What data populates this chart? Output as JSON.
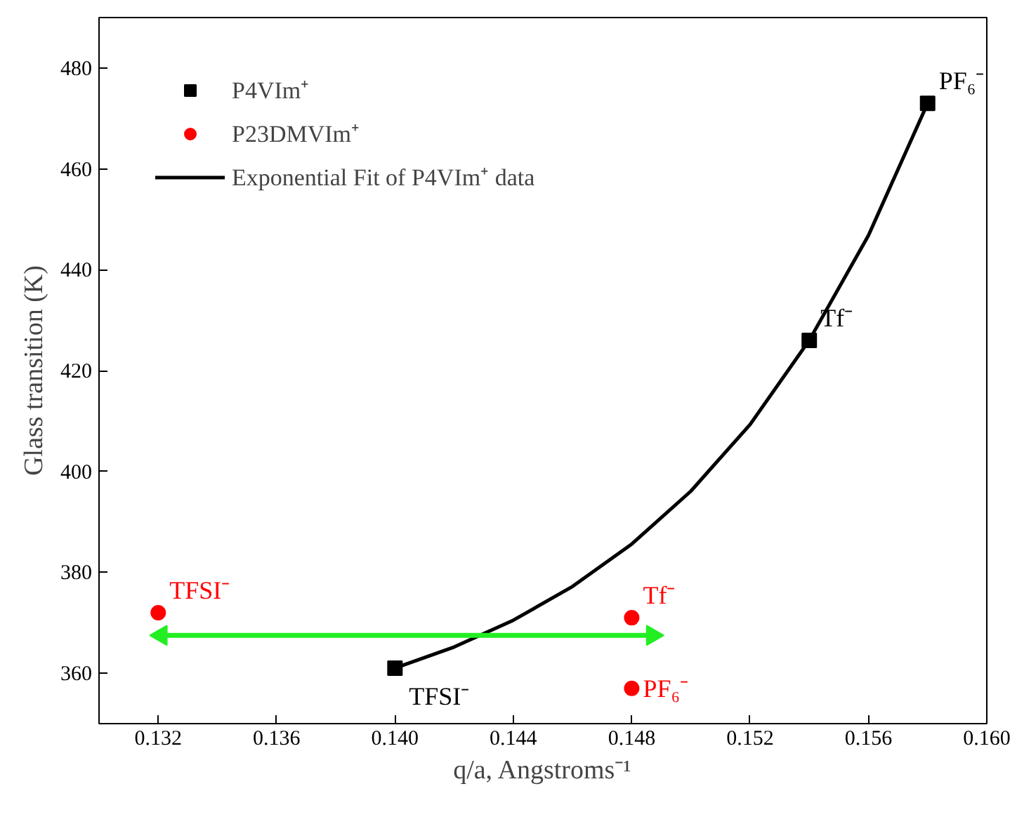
{
  "chart_data": {
    "type": "scatter",
    "xlabel": "q/a, Angstroms⁻¹",
    "ylabel": "Glass transition (K)",
    "xlim": [
      0.13,
      0.16
    ],
    "ylim": [
      350,
      490
    ],
    "xticks": [
      {
        "value": 0.132,
        "label": "0.132"
      },
      {
        "value": 0.136,
        "label": "0.136"
      },
      {
        "value": 0.14,
        "label": "0.140"
      },
      {
        "value": 0.144,
        "label": "0.144"
      },
      {
        "value": 0.148,
        "label": "0.148"
      },
      {
        "value": 0.152,
        "label": "0.152"
      },
      {
        "value": 0.156,
        "label": "0.156"
      },
      {
        "value": 0.16,
        "label": "0.160"
      }
    ],
    "yticks": [
      360,
      380,
      400,
      420,
      440,
      460,
      480
    ],
    "grid": false,
    "legend": "top left",
    "series": [
      {
        "name": "P4VIm⁺",
        "marker": "square",
        "color": "#000000",
        "x": [
          0.14,
          0.154,
          0.158
        ],
        "values": [
          361,
          426,
          473
        ]
      },
      {
        "name": "P23DMVIm⁺",
        "marker": "circle",
        "color": "#ff0000",
        "x": [
          0.132,
          0.148,
          0.148
        ],
        "values": [
          372,
          371,
          357
        ]
      },
      {
        "name": "Exponential Fit of P4VIm⁺ data",
        "type": "line",
        "marker": "none",
        "line_style": "solid",
        "color": "#000000",
        "x": [
          0.14,
          0.142,
          0.144,
          0.146,
          0.148,
          0.15,
          0.152,
          0.154,
          0.156,
          0.158
        ],
        "values": [
          361,
          365.2,
          370.5,
          377.2,
          385.6,
          396.1,
          409.3,
          426,
          446.8,
          473
        ]
      },
      {
        "type": "line",
        "marker": "triangle",
        "line_style": "solid",
        "color": "#22ee22",
        "x": [
          0.1321,
          0.1487
        ],
        "values": [
          367.5,
          367.5
        ]
      }
    ],
    "annotations": [
      {
        "text": "PF₆⁻",
        "x": 0.158,
        "y": 473
      },
      {
        "text": "Tf⁻",
        "x": 0.154,
        "y": 426
      },
      {
        "text": "TFSI⁻",
        "x": 0.14,
        "y": 361
      },
      {
        "text": "TFSI⁻",
        "x": 0.132,
        "y": 372
      },
      {
        "text": "Tf⁻",
        "x": 0.148,
        "y": 371
      },
      {
        "text": "PF₆⁻",
        "x": 0.148,
        "y": 357
      }
    ]
  }
}
